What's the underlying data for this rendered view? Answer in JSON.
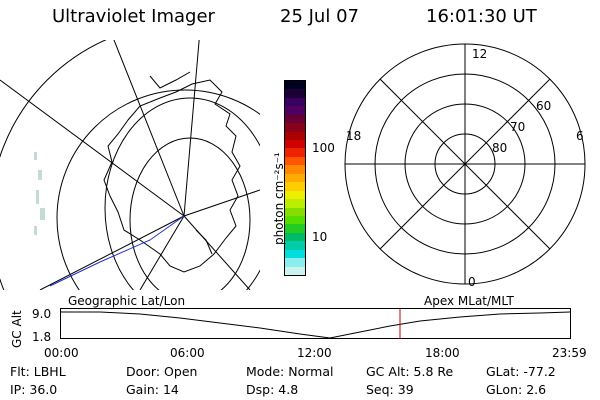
{
  "header": {
    "instrument": "Ultraviolet Imager",
    "date": "25 Jul 07",
    "time": "16:01:30 UT"
  },
  "colorbar": {
    "unit_label": "photon cm⁻²s⁻¹",
    "tick_labels": [
      "100",
      "10"
    ],
    "colors": [
      "#000020",
      "#1a0033",
      "#3a0060",
      "#4d0060",
      "#660033",
      "#88001a",
      "#aa0000",
      "#cc0000",
      "#ee2200",
      "#ff5500",
      "#ff8800",
      "#ffaa00",
      "#ffcc00",
      "#eeee00",
      "#bbee00",
      "#88dd00",
      "#55dd00",
      "#22cc22",
      "#00bb66",
      "#00ccaa",
      "#00dddd",
      "#88eeee",
      "#ccf2f2"
    ]
  },
  "polar_plot": {
    "mlt_labels": {
      "top": "12",
      "left": "18",
      "right": "6",
      "bottom": "0"
    },
    "lat_labels": [
      "60",
      "70",
      "80"
    ]
  },
  "timeline": {
    "left_label": "Geographic Lat/Lon",
    "right_label": "Apex MLat/MLT",
    "axis_title": "GC Alt",
    "y_ticks": [
      "9.0",
      "1.8"
    ],
    "x_ticks": [
      "00:00",
      "06:00",
      "12:00",
      "18:00",
      "23:59"
    ],
    "marker_color": "#cc0000"
  },
  "info": {
    "rows": [
      [
        {
          "key": "Flt:",
          "value": "LBHL"
        },
        {
          "key": "Door:",
          "value": "Open"
        },
        {
          "key": "Mode:",
          "value": "Normal"
        },
        {
          "key": "GC Alt:",
          "value": "5.8 Re"
        },
        {
          "key": "GLat:",
          "value": "-77.2"
        }
      ],
      [
        {
          "key": "IP:",
          "value": "36.0"
        },
        {
          "key": "Gain:",
          "value": "14"
        },
        {
          "key": "Dsp:",
          "value": "4.8"
        },
        {
          "key": "Seq:",
          "value": "39"
        },
        {
          "key": "GLon:",
          "value": "2.6"
        }
      ]
    ]
  }
}
